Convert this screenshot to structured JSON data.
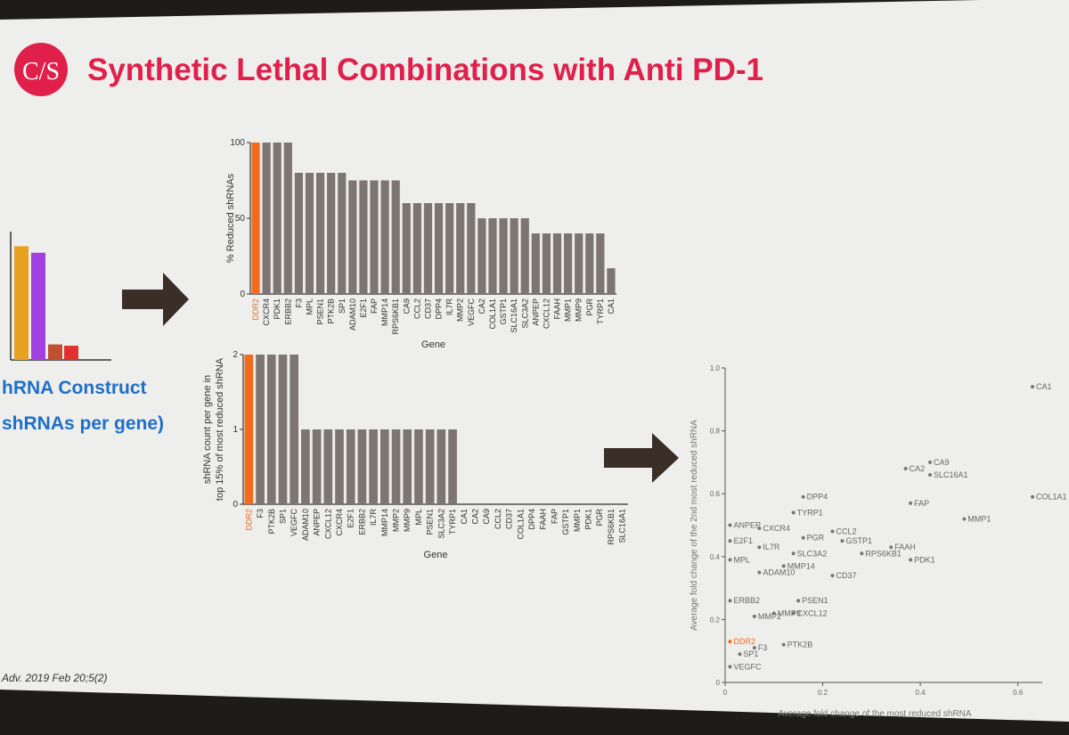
{
  "slide": {
    "logo_text": "C/S",
    "title": "Synthetic Lethal Combinations with Anti PD-1",
    "left_label_line1": "hRNA Construct",
    "left_label_line2": "shRNAs per gene)",
    "citation": "Adv. 2019 Feb 20;5(2)",
    "colors": {
      "title": "#e0204a",
      "bar": "#7d7572",
      "highlight": "#f26b1d",
      "label_blue": "#1e6fc8",
      "arrow": "#3a2e26",
      "screen": "#eeeeec",
      "frame": "#1e1c1a"
    },
    "left_bars": [
      {
        "value": 0.88,
        "color": "#e8a020"
      },
      {
        "value": 0.83,
        "color": "#a040e0"
      },
      {
        "value": 0.12,
        "color": "#c05030"
      },
      {
        "value": 0.11,
        "color": "#e03030"
      }
    ]
  },
  "chart_data": [
    {
      "type": "bar",
      "title": "",
      "xlabel": "Gene",
      "ylabel": "% Reduced shRNAs",
      "ylim": [
        0,
        100
      ],
      "yticks": [
        "0",
        "50",
        "100"
      ],
      "highlight": "DDR2",
      "categories": [
        "DDR2",
        "CXCR4",
        "PDK1",
        "ERBB2",
        "F3",
        "MPL",
        "PSEN1",
        "PTK2B",
        "SP1",
        "ADAM10",
        "E2F1",
        "FAP",
        "MMP14",
        "RPS6KB1",
        "CA9",
        "CCL2",
        "CD37",
        "DPP4",
        "IL7R",
        "MMP2",
        "VEGFC",
        "CA2",
        "COL1A1",
        "GSTP1",
        "SLC16A1",
        "SLC3A2",
        "ANPEP",
        "CXCL12",
        "FAAH",
        "MMP1",
        "MMP9",
        "PGR",
        "TYRP1",
        "CA1"
      ],
      "values": [
        100,
        100,
        100,
        100,
        80,
        80,
        80,
        80,
        80,
        75,
        75,
        75,
        75,
        75,
        60,
        60,
        60,
        60,
        60,
        60,
        60,
        50,
        50,
        50,
        50,
        50,
        40,
        40,
        40,
        40,
        40,
        40,
        40,
        17
      ]
    },
    {
      "type": "bar",
      "title": "",
      "xlabel": "Gene",
      "ylabel_line1": "shRNA count per gene in",
      "ylabel_line2": "top 15% of most reduced shRNA",
      "ylim": [
        0,
        2
      ],
      "yticks": [
        "0",
        "1",
        "2"
      ],
      "highlight": "DDR2",
      "categories": [
        "DDR2",
        "F3",
        "PTK2B",
        "SP1",
        "VEGFC",
        "ADAM10",
        "ANPEP",
        "CXCL12",
        "CXCR4",
        "E2F1",
        "ERBB2",
        "IL7R",
        "MMP14",
        "MMP2",
        "MMP9",
        "MPL",
        "PSEN1",
        "SLC3A2",
        "TYRP1",
        "CA1",
        "CA2",
        "CA9",
        "CCL2",
        "CD37",
        "COL1A1",
        "DPP4",
        "FAAH",
        "FAP",
        "GSTP1",
        "MMP1",
        "PDK1",
        "PGR",
        "RPS6KB1",
        "SLC16A1"
      ],
      "values": [
        2,
        2,
        2,
        2,
        2,
        1,
        1,
        1,
        1,
        1,
        1,
        1,
        1,
        1,
        1,
        1,
        1,
        1,
        1,
        0,
        0,
        0,
        0,
        0,
        0,
        0,
        0,
        0,
        0,
        0,
        0,
        0,
        0,
        0
      ]
    },
    {
      "type": "scatter",
      "title": "",
      "xlabel": "Average fold change of the most reduced shRNA",
      "ylabel": "Average fold change of the 2nd most reduced shRNA",
      "xlim": [
        0,
        0.65
      ],
      "ylim": [
        0,
        1.0
      ],
      "xticks": [
        "0",
        "0.2",
        "0.4",
        "0.6"
      ],
      "yticks": [
        "0",
        "0.2",
        "0.4",
        "0.6",
        "0.8",
        "1.0"
      ],
      "highlight": "DDR2",
      "points": [
        {
          "label": "CA1",
          "x": 0.63,
          "y": 0.94
        },
        {
          "label": "CA9",
          "x": 0.42,
          "y": 0.7
        },
        {
          "label": "CA2",
          "x": 0.37,
          "y": 0.68
        },
        {
          "label": "SLC16A1",
          "x": 0.42,
          "y": 0.66
        },
        {
          "label": "COL1A1",
          "x": 0.63,
          "y": 0.59
        },
        {
          "label": "FAP",
          "x": 0.38,
          "y": 0.57
        },
        {
          "label": "MMP1",
          "x": 0.49,
          "y": 0.52
        },
        {
          "label": "DPP4",
          "x": 0.16,
          "y": 0.59
        },
        {
          "label": "TYRP1",
          "x": 0.14,
          "y": 0.54
        },
        {
          "label": "ANPEP",
          "x": 0.01,
          "y": 0.5
        },
        {
          "label": "CXCR4",
          "x": 0.07,
          "y": 0.49
        },
        {
          "label": "CCL2",
          "x": 0.22,
          "y": 0.48
        },
        {
          "label": "PGR",
          "x": 0.16,
          "y": 0.46
        },
        {
          "label": "GSTP1",
          "x": 0.24,
          "y": 0.45
        },
        {
          "label": "E2F1",
          "x": 0.01,
          "y": 0.45
        },
        {
          "label": "IL7R",
          "x": 0.07,
          "y": 0.43
        },
        {
          "label": "FAAH",
          "x": 0.34,
          "y": 0.43
        },
        {
          "label": "SLC3A2",
          "x": 0.14,
          "y": 0.41
        },
        {
          "label": "RPS6KB1",
          "x": 0.28,
          "y": 0.41
        },
        {
          "label": "PDK1",
          "x": 0.38,
          "y": 0.39
        },
        {
          "label": "MPL",
          "x": 0.01,
          "y": 0.39
        },
        {
          "label": "MMP14",
          "x": 0.12,
          "y": 0.37
        },
        {
          "label": "ADAM10",
          "x": 0.07,
          "y": 0.35
        },
        {
          "label": "CD37",
          "x": 0.22,
          "y": 0.34
        },
        {
          "label": "ERBB2",
          "x": 0.01,
          "y": 0.26
        },
        {
          "label": "PSEN1",
          "x": 0.15,
          "y": 0.26
        },
        {
          "label": "CXCL12",
          "x": 0.14,
          "y": 0.22
        },
        {
          "label": "MMP2",
          "x": 0.06,
          "y": 0.21
        },
        {
          "label": "MMP9",
          "x": 0.1,
          "y": 0.22
        },
        {
          "label": "DDR2",
          "x": 0.01,
          "y": 0.13
        },
        {
          "label": "F3",
          "x": 0.06,
          "y": 0.11
        },
        {
          "label": "PTK2B",
          "x": 0.12,
          "y": 0.12
        },
        {
          "label": "SP1",
          "x": 0.03,
          "y": 0.09
        },
        {
          "label": "VEGFC",
          "x": 0.01,
          "y": 0.05
        }
      ]
    }
  ]
}
